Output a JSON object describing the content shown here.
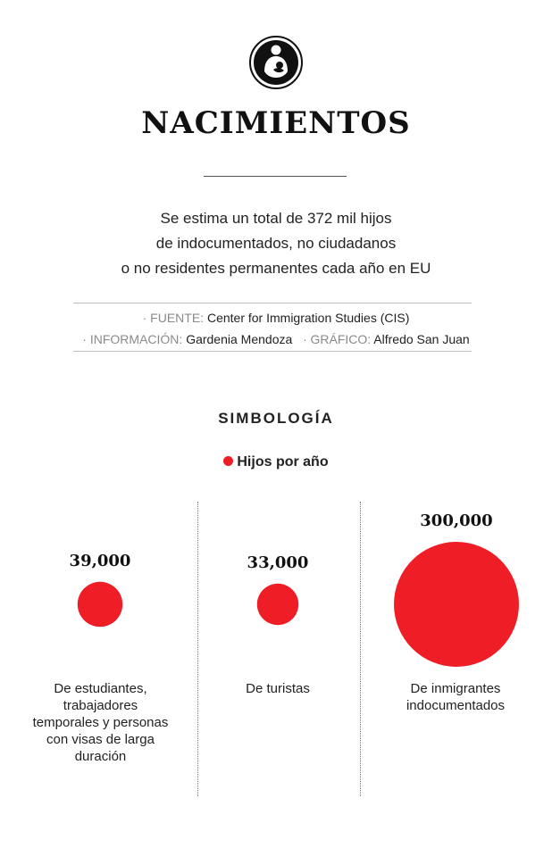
{
  "logo": {
    "icon": "breastfeeding-mother-icon"
  },
  "title": "NACIMIENTOS",
  "subtitle": {
    "lines": [
      "Se estima un total de 372 mil hijos",
      "de indocumentados, no ciudadanos",
      "o no residentes permanentes cada año en EU"
    ]
  },
  "credits": {
    "source_label": "· FUENTE:",
    "source_value": "Center for Immigration Studies (CIS)",
    "info_label": "· INFORMACIÓN:",
    "info_value": "Gardenia Mendoza",
    "graphic_label": "· GRÁFICO:",
    "graphic_value": "Alfredo San Juan"
  },
  "legend": {
    "title": "SIMBOLOGÍA",
    "item": "Hijos por año",
    "color": "#ee1d26"
  },
  "chart_data": {
    "type": "bubble",
    "series": [
      {
        "name": "Hijos por año",
        "color": "#ee1d26",
        "values": [
          39000,
          33000,
          300000
        ]
      }
    ],
    "categories": [
      "De estudiantes, trabajadores temporales y personas con visas de larga duración",
      "De turistas",
      "De inmigrantes indocumentados"
    ],
    "value_labels": [
      "39,000",
      "33,000",
      "300,000"
    ],
    "category_lines": [
      [
        "De estudiantes,",
        "trabajadores",
        "temporales y personas",
        "con visas de larga",
        "duración"
      ],
      [
        "De turistas"
      ],
      [
        "De inmigrantes",
        "indocumentados"
      ]
    ]
  }
}
